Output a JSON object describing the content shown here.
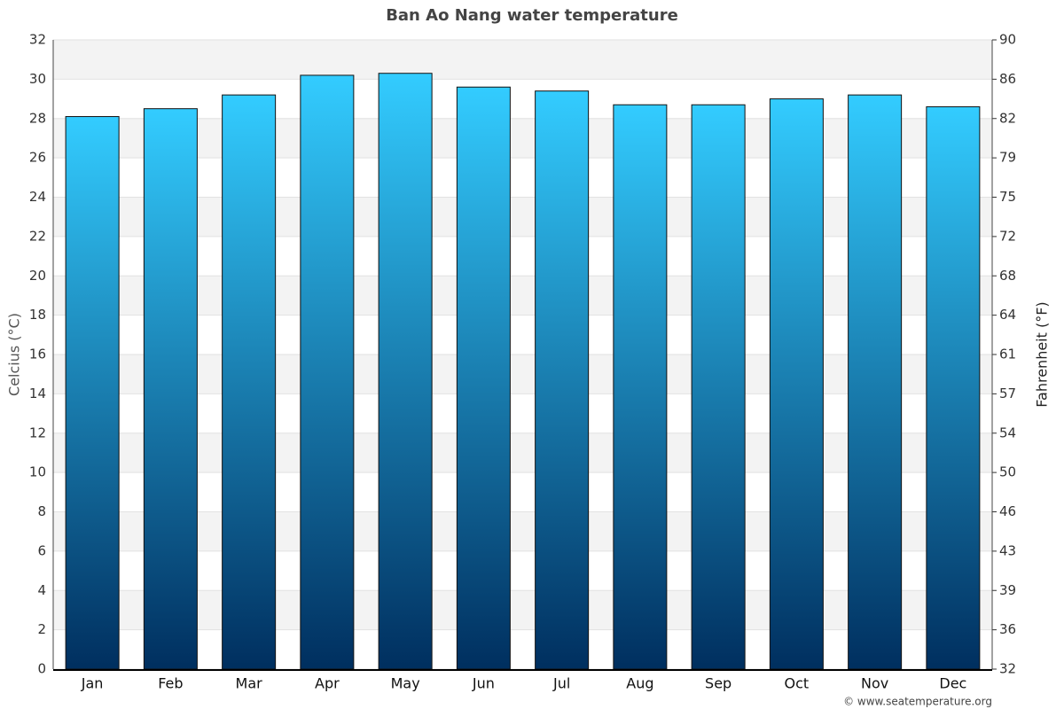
{
  "chart_data": {
    "type": "bar",
    "title": "Ban Ao Nang water temperature",
    "categories": [
      "Jan",
      "Feb",
      "Mar",
      "Apr",
      "May",
      "Jun",
      "Jul",
      "Aug",
      "Sep",
      "Oct",
      "Nov",
      "Dec"
    ],
    "values": [
      28.1,
      28.5,
      29.2,
      30.2,
      30.3,
      29.6,
      29.4,
      28.7,
      28.7,
      29.0,
      29.2,
      28.6
    ],
    "gradient": [
      "#33ccff",
      "#002f5f"
    ],
    "y_label": "Celcius (°C)",
    "y2_label": "Fahrenheit (°F)",
    "ylim": [
      0,
      32
    ],
    "yticks": [
      0,
      2,
      4,
      6,
      8,
      10,
      12,
      14,
      16,
      18,
      20,
      22,
      24,
      26,
      28,
      30,
      32
    ],
    "y2lim": [
      32,
      89.6
    ],
    "y2ticks": [
      32,
      {
        "value": 35.6,
        "label": "36"
      },
      {
        "value": 39.2,
        "label": "39"
      },
      {
        "value": 42.8,
        "label": "43"
      },
      {
        "value": 46.4,
        "label": "46"
      },
      50,
      {
        "value": 53.6,
        "label": "54"
      },
      {
        "value": 57.2,
        "label": "57"
      },
      {
        "value": 60.8,
        "label": "61"
      },
      {
        "value": 64.4,
        "label": "64"
      },
      68,
      {
        "value": 71.6,
        "label": "72"
      },
      {
        "value": 75.2,
        "label": "75"
      },
      {
        "value": 78.8,
        "label": "79"
      },
      {
        "value": 82.4,
        "label": "82"
      },
      86,
      {
        "value": 89.6,
        "label": "90"
      }
    ],
    "grid": true,
    "credit": "© www.seatemperature.org"
  }
}
